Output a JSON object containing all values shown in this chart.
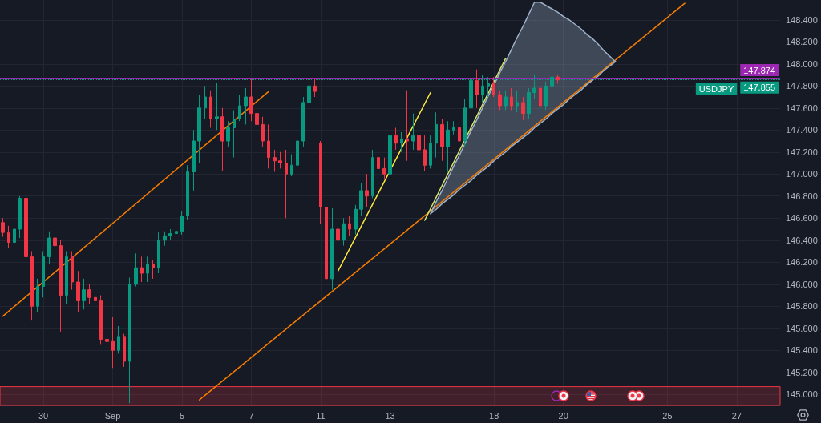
{
  "chart_data": {
    "type": "candlestick",
    "categories": [
      null,
      null,
      null,
      null,
      null,
      null,
      null,
      "30",
      null,
      null,
      null,
      null,
      null,
      null,
      null,
      null,
      null,
      null,
      null,
      "Sep",
      null,
      null,
      null,
      null,
      null,
      null,
      null,
      null,
      null,
      null,
      null,
      "5",
      null,
      null,
      null,
      null,
      null,
      null,
      null,
      null,
      null,
      null,
      null,
      "7",
      null,
      null,
      null,
      null,
      null,
      null,
      null,
      null,
      null,
      null,
      null,
      "11",
      null,
      null,
      null,
      null,
      null,
      null,
      null,
      null,
      null,
      null,
      null,
      "13",
      null,
      null,
      null,
      null,
      null,
      null,
      null,
      null,
      null,
      null,
      null,
      null,
      null,
      null,
      null,
      null,
      null,
      "18",
      null,
      null,
      null,
      null,
      null,
      null,
      null,
      null,
      null,
      null,
      null,
      "20",
      null,
      null,
      null,
      null,
      null,
      null,
      null,
      null,
      null,
      null,
      null,
      null,
      null,
      null,
      null,
      null,
      null,
      "25",
      null,
      null,
      null,
      null,
      null,
      null,
      null,
      null,
      null,
      null,
      null,
      "27",
      null,
      null,
      null,
      null,
      null,
      null,
      null
    ],
    "ohlc": [
      [
        146.56,
        146.6,
        146.43,
        146.47
      ],
      [
        146.47,
        146.53,
        146.33,
        146.38
      ],
      [
        146.38,
        146.56,
        146.33,
        146.5
      ],
      [
        146.5,
        146.8,
        146.42,
        146.78
      ],
      [
        146.78,
        147.38,
        146.18,
        146.25
      ],
      [
        146.25,
        146.3,
        145.67,
        145.8
      ],
      [
        145.8,
        146.05,
        145.75,
        145.98
      ],
      [
        145.98,
        146.3,
        145.88,
        146.25
      ],
      [
        146.25,
        146.48,
        146.18,
        146.42
      ],
      [
        146.42,
        146.53,
        146.3,
        146.35
      ],
      [
        146.35,
        146.4,
        145.57,
        145.9
      ],
      [
        145.9,
        146.3,
        145.82,
        146.25
      ],
      [
        146.25,
        146.3,
        145.95,
        146.02
      ],
      [
        146.02,
        146.12,
        145.75,
        145.85
      ],
      [
        145.85,
        146.05,
        145.77,
        145.95
      ],
      [
        145.95,
        146.0,
        145.82,
        145.88
      ],
      [
        145.88,
        146.22,
        145.8,
        145.85
      ],
      [
        145.85,
        145.9,
        145.45,
        145.5
      ],
      [
        145.5,
        145.58,
        145.35,
        145.48
      ],
      [
        145.48,
        145.7,
        145.24,
        145.4
      ],
      [
        145.4,
        145.62,
        145.37,
        145.52
      ],
      [
        145.52,
        145.55,
        145.25,
        145.3
      ],
      [
        145.3,
        146.06,
        144.92,
        146.0
      ],
      [
        146.0,
        146.28,
        145.98,
        146.15
      ],
      [
        146.15,
        146.25,
        146.02,
        146.1
      ],
      [
        146.1,
        146.25,
        146.02,
        146.18
      ],
      [
        146.18,
        146.22,
        146.05,
        146.15
      ],
      [
        146.15,
        146.47,
        146.1,
        146.4
      ],
      [
        146.4,
        146.48,
        146.35,
        146.44
      ],
      [
        146.44,
        146.5,
        146.4,
        146.46
      ],
      [
        146.46,
        146.52,
        146.36,
        146.48
      ],
      [
        146.48,
        146.66,
        146.45,
        146.62
      ],
      [
        146.62,
        147.08,
        146.58,
        147.02
      ],
      [
        147.02,
        147.4,
        146.85,
        147.3
      ],
      [
        147.3,
        147.72,
        147.1,
        147.6
      ],
      [
        147.6,
        147.8,
        147.5,
        147.7
      ],
      [
        147.7,
        147.76,
        147.42,
        147.5
      ],
      [
        147.5,
        147.83,
        147.4,
        147.52
      ],
      [
        147.52,
        147.6,
        147.03,
        147.3
      ],
      [
        147.3,
        147.48,
        147.25,
        147.42
      ],
      [
        147.42,
        147.58,
        147.15,
        147.5
      ],
      [
        147.5,
        147.72,
        147.48,
        147.62
      ],
      [
        147.62,
        147.78,
        147.45,
        147.7
      ],
      [
        147.7,
        147.87,
        147.48,
        147.55
      ],
      [
        147.55,
        147.62,
        147.4,
        147.45
      ],
      [
        147.45,
        147.52,
        147.25,
        147.3
      ],
      [
        147.3,
        147.45,
        147.05,
        147.15
      ],
      [
        147.15,
        147.22,
        147.02,
        147.12
      ],
      [
        147.12,
        147.2,
        147.05,
        147.1
      ],
      [
        147.1,
        147.22,
        146.6,
        147.0
      ],
      [
        147.0,
        147.18,
        146.98,
        147.08
      ],
      [
        147.08,
        147.35,
        147.05,
        147.3
      ],
      [
        147.3,
        147.7,
        147.25,
        147.65
      ],
      [
        147.65,
        147.87,
        147.62,
        147.8
      ],
      [
        147.8,
        147.87,
        147.7,
        147.75
      ],
      [
        147.28,
        147.3,
        146.55,
        146.7
      ],
      [
        146.7,
        146.75,
        145.91,
        146.05
      ],
      [
        146.05,
        146.69,
        145.95,
        146.5
      ],
      [
        146.5,
        146.98,
        146.25,
        146.4
      ],
      [
        146.4,
        146.6,
        146.35,
        146.55
      ],
      [
        146.55,
        146.62,
        146.44,
        146.5
      ],
      [
        146.5,
        146.72,
        146.45,
        146.68
      ],
      [
        146.68,
        146.92,
        146.62,
        146.85
      ],
      [
        146.85,
        147.0,
        146.7,
        146.8
      ],
      [
        146.8,
        147.22,
        146.78,
        147.15
      ],
      [
        147.15,
        147.22,
        146.98,
        147.05
      ],
      [
        147.05,
        147.15,
        146.95,
        147.0
      ],
      [
        147.0,
        147.44,
        146.98,
        147.35
      ],
      [
        147.35,
        147.42,
        147.22,
        147.28
      ],
      [
        147.28,
        147.38,
        147.2,
        147.32
      ],
      [
        147.32,
        147.76,
        147.12,
        147.3
      ],
      [
        147.3,
        147.55,
        147.22,
        147.35
      ],
      [
        147.35,
        147.45,
        147.17,
        147.22
      ],
      [
        147.22,
        147.35,
        147.03,
        147.08
      ],
      [
        147.08,
        147.35,
        147.05,
        147.28
      ],
      [
        147.28,
        147.56,
        147.15,
        147.45
      ],
      [
        147.45,
        147.5,
        147.12,
        147.25
      ],
      [
        147.25,
        147.48,
        147.02,
        147.4
      ],
      [
        147.4,
        147.48,
        147.36,
        147.42
      ],
      [
        147.42,
        147.52,
        147.22,
        147.3
      ],
      [
        147.3,
        147.68,
        147.25,
        147.6
      ],
      [
        147.6,
        147.95,
        147.55,
        147.85
      ],
      [
        147.85,
        147.95,
        147.6,
        147.72
      ],
      [
        147.72,
        147.9,
        147.65,
        147.8
      ],
      [
        147.8,
        147.88,
        147.7,
        147.82
      ],
      [
        147.82,
        147.88,
        147.7,
        147.72
      ],
      [
        147.72,
        147.76,
        147.58,
        147.62
      ],
      [
        147.62,
        147.76,
        147.58,
        147.7
      ],
      [
        147.7,
        147.78,
        147.58,
        147.62
      ],
      [
        147.62,
        147.76,
        147.56,
        147.65
      ],
      [
        147.65,
        147.7,
        147.49,
        147.55
      ],
      [
        147.55,
        147.78,
        147.5,
        147.74
      ],
      [
        147.74,
        147.9,
        147.68,
        147.78
      ],
      [
        147.78,
        147.82,
        147.57,
        147.62
      ],
      [
        147.62,
        147.84,
        147.58,
        147.8
      ],
      [
        147.8,
        147.93,
        147.76,
        147.88
      ],
      [
        147.88,
        147.9,
        147.82,
        147.855
      ],
      null,
      null,
      null,
      null,
      null,
      null,
      null,
      null,
      null,
      null,
      null,
      null,
      null,
      null,
      null,
      null,
      null,
      null,
      null,
      null,
      null,
      null,
      null,
      null,
      null,
      null,
      null,
      null,
      null,
      null,
      null,
      null,
      null,
      null,
      null,
      null,
      null,
      null
    ],
    "colors": [
      "#f23645",
      "#f23645",
      "#089981",
      "#089981",
      "#f23645",
      "#f23645",
      "#089981",
      "#089981",
      "#089981",
      "#f23645",
      "#f23645",
      "#089981",
      "#f23645",
      "#f23645",
      "#089981",
      "#f23645",
      "#f23645",
      "#f23645",
      "#f23645",
      "#f23645",
      "#089981",
      "#f23645",
      "#089981",
      "#089981",
      "#f23645",
      "#089981",
      "#f23645",
      "#089981",
      "#089981",
      "#089981",
      "#089981",
      "#089981",
      "#089981",
      "#089981",
      "#089981",
      "#089981",
      "#f23645",
      "#089981",
      "#f23645",
      "#089981",
      "#089981",
      "#089981",
      "#089981",
      "#f23645",
      "#f23645",
      "#f23645",
      "#f23645",
      "#f23645",
      "#f23645",
      "#f23645",
      "#089981",
      "#089981",
      "#089981",
      "#089981",
      "#f23645",
      "#f23645",
      "#f23645",
      "#089981",
      "#f23645",
      "#089981",
      "#f23645",
      "#089981",
      "#089981",
      "#f23645",
      "#089981",
      "#f23645",
      "#f23645",
      "#089981",
      "#f23645",
      "#089981",
      "#f23645",
      "#089981",
      "#f23645",
      "#f23645",
      "#089981",
      "#089981",
      "#f23645",
      "#089981",
      "#089981",
      "#f23645",
      "#089981",
      "#089981",
      "#f23645",
      "#089981",
      "#089981",
      "#f23645",
      "#f23645",
      "#089981",
      "#f23645",
      "#089981",
      "#f23645",
      "#089981",
      "#089981",
      "#f23645",
      "#089981",
      "#089981",
      "#f23645",
      null,
      null,
      null,
      null,
      null,
      null,
      null,
      null,
      null,
      null,
      null,
      null,
      null,
      null,
      null,
      null,
      null,
      null,
      null,
      null,
      null,
      null,
      null,
      null,
      null,
      null,
      null,
      null,
      null,
      null,
      null,
      null,
      null,
      null,
      null,
      null,
      null,
      null
    ],
    "series": [
      {
        "type": "line",
        "color": "#f57c00",
        "values": [
          145.71,
          null,
          null,
          null,
          null,
          null,
          null,
          null,
          null,
          null,
          null,
          null,
          null,
          null,
          null,
          null,
          null,
          null,
          null,
          null,
          null,
          null,
          null,
          null,
          null,
          null,
          null,
          null,
          null,
          null,
          null,
          null,
          null,
          null,
          null,
          null,
          null,
          null,
          null,
          null,
          null,
          null,
          null,
          null,
          null,
          null,
          147.75,
          null,
          null,
          null,
          null,
          null,
          null,
          null,
          null,
          null,
          null,
          null,
          null,
          null,
          null,
          null,
          null,
          null,
          null,
          null,
          null,
          null,
          null,
          null,
          null,
          null,
          null,
          null,
          null,
          null,
          null,
          null,
          null,
          null,
          null,
          null,
          null,
          null,
          null,
          null,
          null,
          null,
          null,
          null,
          null,
          null,
          null,
          null,
          null,
          null,
          null,
          null,
          null,
          null,
          null,
          null,
          null,
          null,
          null,
          null,
          null,
          null,
          null,
          null,
          null,
          null,
          null,
          null,
          null,
          null,
          null,
          null,
          null,
          null,
          null,
          null,
          null,
          null,
          null,
          null,
          null,
          null,
          null,
          null,
          null,
          null,
          null,
          null,
          null
        ]
      },
      {
        "type": "line",
        "color": "#f57c00",
        "values": [
          null,
          null,
          null,
          null,
          null,
          null,
          null,
          null,
          null,
          null,
          null,
          null,
          null,
          null,
          null,
          null,
          null,
          null,
          null,
          null,
          null,
          null,
          null,
          null,
          null,
          null,
          null,
          null,
          null,
          null,
          null,
          null,
          null,
          null,
          144.95,
          null,
          null,
          null,
          null,
          null,
          null,
          null,
          null,
          null,
          null,
          null,
          null,
          null,
          null,
          null,
          null,
          null,
          null,
          null,
          null,
          null,
          null,
          null,
          null,
          null,
          null,
          null,
          null,
          null,
          null,
          null,
          null,
          null,
          null,
          null,
          null,
          null,
          null,
          null,
          null,
          null,
          null,
          null,
          null,
          null,
          null,
          null,
          null,
          null,
          null,
          null,
          null,
          null,
          null,
          null,
          null,
          null,
          null,
          null,
          null,
          null,
          null,
          null,
          null,
          null,
          null,
          null,
          null,
          null,
          null,
          null,
          null,
          null,
          null,
          null,
          null,
          null,
          null,
          null,
          null,
          null,
          null,
          null,
          148.55,
          null,
          null,
          null,
          null,
          null,
          null,
          null,
          null,
          null,
          null,
          null,
          null,
          null,
          null,
          null,
          null
        ]
      },
      {
        "type": "line",
        "color": "#ffeb3b",
        "values": [
          null,
          null,
          null,
          null,
          null,
          null,
          null,
          null,
          null,
          null,
          null,
          null,
          null,
          null,
          null,
          null,
          null,
          null,
          null,
          null,
          null,
          null,
          null,
          null,
          null,
          null,
          null,
          null,
          null,
          null,
          null,
          null,
          null,
          null,
          null,
          null,
          null,
          null,
          null,
          null,
          null,
          null,
          null,
          null,
          null,
          null,
          null,
          null,
          null,
          null,
          null,
          null,
          null,
          null,
          null,
          null,
          null,
          null,
          146.12,
          null,
          null,
          null,
          null,
          null,
          null,
          null,
          null,
          null,
          null,
          null,
          null,
          null,
          null,
          null,
          147.74,
          null,
          null,
          null,
          null,
          null,
          null,
          null,
          null,
          null,
          null,
          null,
          null,
          null,
          null,
          null,
          null,
          null,
          null,
          null,
          null,
          null,
          null,
          null,
          null,
          null,
          null,
          null,
          null,
          null,
          null,
          null,
          null,
          null,
          null,
          null,
          null,
          null,
          null,
          null,
          null,
          null,
          null,
          null,
          null,
          null,
          null,
          null,
          null,
          null,
          null,
          null,
          null,
          null,
          null,
          null,
          null,
          null,
          null,
          null,
          null
        ]
      },
      {
        "type": "line",
        "color": "#d6e46a",
        "values": [
          null,
          null,
          null,
          null,
          null,
          null,
          null,
          null,
          null,
          null,
          null,
          null,
          null,
          null,
          null,
          null,
          null,
          null,
          null,
          null,
          null,
          null,
          null,
          null,
          null,
          null,
          null,
          null,
          null,
          null,
          null,
          null,
          null,
          null,
          null,
          null,
          null,
          null,
          null,
          null,
          null,
          null,
          null,
          null,
          null,
          null,
          null,
          null,
          null,
          null,
          null,
          null,
          null,
          null,
          null,
          null,
          null,
          null,
          null,
          null,
          null,
          null,
          null,
          null,
          null,
          null,
          null,
          null,
          null,
          null,
          null,
          null,
          null,
          146.58,
          null,
          null,
          null,
          null,
          null,
          null,
          null,
          null,
          null,
          null,
          null,
          null,
          null,
          148.05,
          null,
          null,
          null,
          null,
          null,
          null,
          null,
          null,
          null,
          null,
          null,
          null,
          null,
          null,
          null,
          null,
          null,
          null,
          null,
          null,
          null,
          null,
          null,
          null,
          null,
          null,
          null,
          null,
          null,
          null,
          null,
          null,
          null,
          null,
          null,
          null,
          null,
          null,
          null,
          null,
          null,
          null,
          null,
          null,
          null,
          null,
          null
        ]
      },
      {
        "type": "line",
        "color": "#9fb3cc",
        "values": [
          null,
          null,
          null,
          null,
          null,
          null,
          null,
          null,
          null,
          null,
          null,
          null,
          null,
          null,
          null,
          null,
          null,
          null,
          null,
          null,
          null,
          null,
          null,
          null,
          null,
          null,
          null,
          null,
          null,
          null,
          null,
          null,
          null,
          null,
          null,
          null,
          null,
          null,
          null,
          null,
          null,
          null,
          null,
          null,
          null,
          null,
          null,
          null,
          null,
          null,
          null,
          null,
          null,
          null,
          null,
          null,
          null,
          null,
          null,
          null,
          null,
          null,
          null,
          null,
          null,
          null,
          null,
          null,
          null,
          null,
          null,
          null,
          null,
          null,
          146.64,
          146.75,
          146.85,
          146.96,
          147.07,
          147.17,
          147.28,
          147.39,
          147.49,
          147.6,
          147.71,
          147.81,
          147.92,
          148.02,
          148.13,
          148.24,
          148.34,
          148.45,
          148.56,
          148.56,
          148.53,
          148.5,
          148.47,
          148.43,
          148.4,
          148.36,
          148.32,
          148.27,
          148.23,
          148.18,
          148.12,
          148.07,
          148.02,
          null,
          null,
          null,
          null,
          null,
          null,
          null,
          null,
          null,
          null,
          null,
          null,
          null,
          null,
          null,
          null,
          null,
          null,
          null,
          null,
          null,
          null,
          null,
          null,
          null,
          null,
          null,
          null
        ],
        "upper": [
          null,
          null,
          null,
          null,
          null,
          null,
          null,
          null,
          null,
          null,
          null,
          null,
          null,
          null,
          null,
          null,
          null,
          null,
          null,
          null,
          null,
          null,
          null,
          null,
          null,
          null,
          null,
          null,
          null,
          null,
          null,
          null,
          null,
          null,
          null,
          null,
          null,
          null,
          null,
          null,
          null,
          null,
          null,
          null,
          null,
          null,
          null,
          null,
          null,
          null,
          null,
          null,
          null,
          null,
          null,
          null,
          null,
          null,
          null,
          null,
          null,
          null,
          null,
          null,
          null,
          null,
          null,
          null,
          null,
          null,
          null,
          null,
          null,
          null,
          146.64,
          146.75,
          146.85,
          146.96,
          147.07,
          147.17,
          147.28,
          147.39,
          147.49,
          147.6,
          147.71,
          147.81,
          147.92,
          148.02,
          148.13,
          148.24,
          148.34,
          148.45,
          148.56,
          148.56,
          148.53,
          148.5,
          148.47,
          148.43,
          148.4,
          148.36,
          148.32,
          148.27,
          148.23,
          148.18,
          148.12,
          148.07,
          148.02,
          null,
          null,
          null,
          null,
          null,
          null,
          null,
          null,
          null,
          null,
          null,
          null,
          null,
          null,
          null,
          null,
          null,
          null,
          null,
          null,
          null,
          null,
          null,
          null,
          null,
          null,
          null,
          null
        ],
        "lower": [
          null,
          null,
          null,
          null,
          null,
          null,
          null,
          null,
          null,
          null,
          null,
          null,
          null,
          null,
          null,
          null,
          null,
          null,
          null,
          null,
          null,
          null,
          null,
          null,
          null,
          null,
          null,
          null,
          null,
          null,
          null,
          null,
          null,
          null,
          null,
          null,
          null,
          null,
          null,
          null,
          null,
          null,
          null,
          null,
          null,
          null,
          null,
          null,
          null,
          null,
          null,
          null,
          null,
          null,
          null,
          null,
          null,
          null,
          null,
          null,
          null,
          null,
          null,
          null,
          null,
          null,
          null,
          null,
          null,
          null,
          null,
          null,
          null,
          null,
          146.64,
          146.68,
          146.73,
          146.77,
          146.81,
          146.86,
          146.9,
          146.94,
          146.99,
          147.03,
          147.07,
          147.12,
          147.16,
          147.2,
          147.25,
          147.29,
          147.33,
          147.37,
          147.42,
          147.46,
          147.5,
          147.55,
          147.59,
          147.63,
          147.68,
          147.72,
          147.76,
          147.81,
          147.85,
          147.89,
          147.94,
          147.98,
          148.02,
          null,
          null,
          null,
          null,
          null,
          null,
          null,
          null,
          null,
          null,
          null,
          null,
          null,
          null,
          null,
          null,
          null,
          null,
          null,
          null,
          null,
          null,
          null,
          null,
          null,
          null,
          null,
          null
        ]
      },
      {
        "type": "line",
        "color": "#9fb3cc",
        "values": [
          null,
          null,
          null,
          null,
          null,
          null,
          null,
          null,
          null,
          null,
          null,
          null,
          null,
          null,
          null,
          null,
          null,
          null,
          null,
          null,
          null,
          null,
          null,
          null,
          null,
          null,
          null,
          null,
          null,
          null,
          null,
          null,
          null,
          null,
          null,
          null,
          null,
          null,
          null,
          null,
          null,
          null,
          null,
          null,
          null,
          null,
          null,
          null,
          null,
          null,
          null,
          null,
          null,
          null,
          null,
          null,
          null,
          null,
          null,
          null,
          null,
          null,
          null,
          null,
          null,
          null,
          null,
          null,
          null,
          null,
          null,
          null,
          null,
          null,
          146.64,
          146.68,
          146.73,
          146.77,
          146.81,
          146.86,
          146.9,
          146.94,
          146.99,
          147.03,
          147.07,
          147.12,
          147.16,
          147.2,
          147.25,
          147.29,
          147.33,
          147.37,
          147.42,
          147.46,
          147.5,
          147.55,
          147.59,
          147.63,
          147.68,
          147.72,
          147.76,
          147.81,
          147.85,
          147.89,
          147.94,
          147.98,
          148.02,
          null,
          null,
          null,
          null,
          null,
          null,
          null,
          null,
          null,
          null,
          null,
          null,
          null,
          null,
          null,
          null,
          null,
          null,
          null,
          null,
          null,
          null,
          null,
          null,
          null,
          null,
          null,
          null
        ]
      }
    ],
    "ylim": [
      144.9,
      148.58
    ],
    "yticks": [
      {
        "value": 145,
        "label": "145.000"
      },
      {
        "value": 145.2,
        "label": "145.200"
      },
      {
        "value": 145.4,
        "label": "145.400"
      },
      {
        "value": 145.6,
        "label": "145.600"
      },
      {
        "value": 145.8,
        "label": "145.800"
      },
      {
        "value": 146,
        "label": "146.000"
      },
      {
        "value": 146.2,
        "label": "146.200"
      },
      {
        "value": 146.4,
        "label": "146.400"
      },
      {
        "value": 146.6,
        "label": "146.600"
      },
      {
        "value": 146.8,
        "label": "146.800"
      },
      {
        "value": 147,
        "label": "147.000"
      },
      {
        "value": 147.2,
        "label": "147.200"
      },
      {
        "value": 147.4,
        "label": "147.400"
      },
      {
        "value": 147.6,
        "label": "147.600"
      },
      {
        "value": 147.8,
        "label": "147.800"
      },
      {
        "value": 148,
        "label": "148.000"
      },
      {
        "value": 148.2,
        "label": "148.200"
      },
      {
        "value": 148.4,
        "label": "148.400"
      }
    ],
    "grid": true,
    "ref_lines": [
      {
        "axis": "y",
        "value": 147.874,
        "label": "147.874",
        "color": "#9c27b0"
      },
      {
        "axis": "y",
        "value": 147.855,
        "label": "147.855",
        "color": "#089981",
        "line_style": "dotted"
      }
    ],
    "bands": [
      {
        "axis": "y",
        "from": 144.9,
        "to": 145.07,
        "color": "#f23645"
      }
    ],
    "annotations": [
      {
        "text": "USDJPY",
        "y": 147.855
      }
    ]
  }
}
